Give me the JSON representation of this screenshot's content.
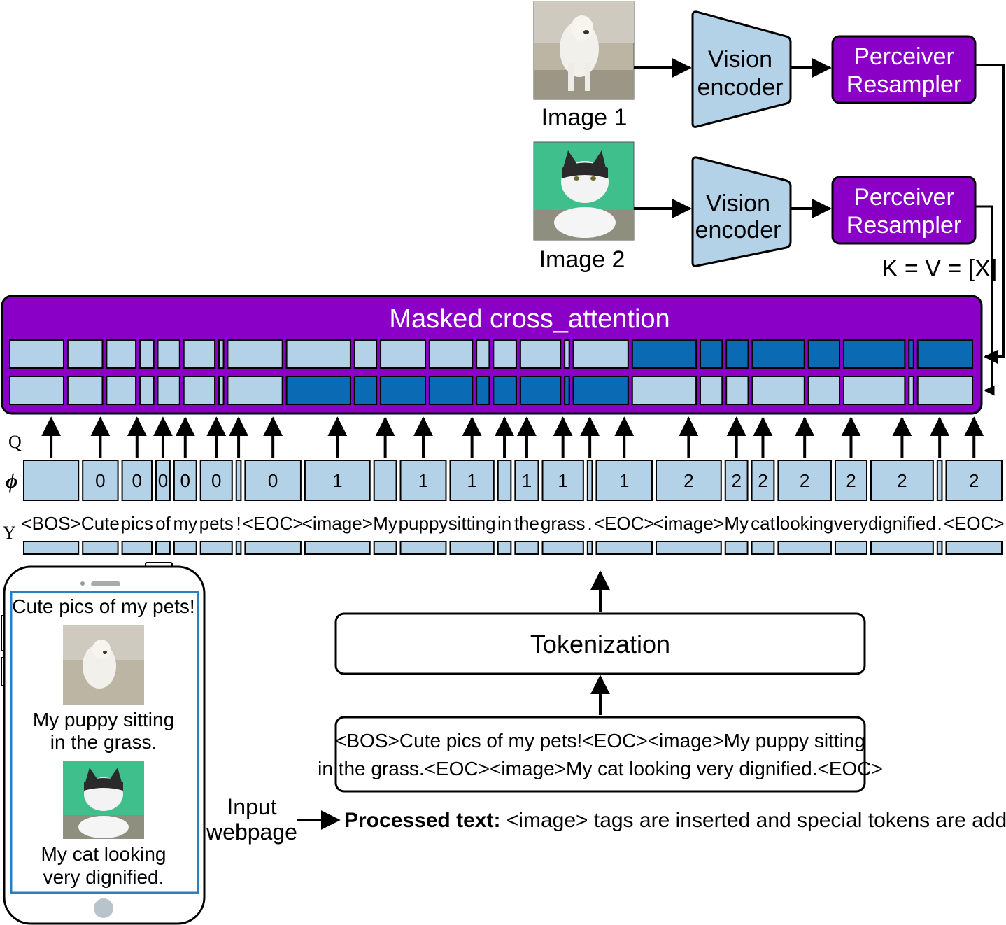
{
  "images": {
    "image1_label": "Image 1",
    "image2_label": "Image 2"
  },
  "encoder": {
    "encoder1_label": [
      "Vision",
      "encoder"
    ],
    "encoder2_label": [
      "Vision",
      "encoder"
    ]
  },
  "resampler": {
    "resampler1_label": [
      "Perceiver",
      "Resampler"
    ],
    "resampler2_label": [
      "Perceiver",
      "Resampler"
    ]
  },
  "kv_label": "K = V = [X]",
  "attention": {
    "title": "Masked cross_attention",
    "row1_dark_image": 2,
    "row2_dark_image": 1
  },
  "axis_labels": {
    "q": "Q",
    "phi": "ϕ",
    "y": "Y"
  },
  "tokens": [
    {
      "text": "<BOS>",
      "phi": "",
      "img": 0
    },
    {
      "text": "Cute",
      "phi": "0",
      "img": 0
    },
    {
      "text": "pics",
      "phi": "0",
      "img": 0
    },
    {
      "text": "of",
      "phi": "0",
      "img": 0
    },
    {
      "text": "my",
      "phi": "0",
      "img": 0
    },
    {
      "text": "pets",
      "phi": "0",
      "img": 0
    },
    {
      "text": "!",
      "phi": "",
      "img": 0
    },
    {
      "text": "<EOC>",
      "phi": "0",
      "img": 0
    },
    {
      "text": "<image>",
      "phi": "1",
      "img": 1
    },
    {
      "text": "My",
      "phi": "",
      "img": 1
    },
    {
      "text": "puppy",
      "phi": "1",
      "img": 1
    },
    {
      "text": "sitting",
      "phi": "1",
      "img": 1
    },
    {
      "text": "in",
      "phi": "",
      "img": 1
    },
    {
      "text": "the",
      "phi": "1",
      "img": 1
    },
    {
      "text": "grass",
      "phi": "1",
      "img": 1
    },
    {
      "text": ".",
      "phi": "",
      "img": 1
    },
    {
      "text": "<EOC>",
      "phi": "1",
      "img": 1
    },
    {
      "text": "<image>",
      "phi": "2",
      "img": 2
    },
    {
      "text": "My",
      "phi": "2",
      "img": 2
    },
    {
      "text": "cat",
      "phi": "2",
      "img": 2
    },
    {
      "text": "looking",
      "phi": "2",
      "img": 2
    },
    {
      "text": "very",
      "phi": "2",
      "img": 2
    },
    {
      "text": "dignified",
      "phi": "2",
      "img": 2
    },
    {
      "text": ".",
      "phi": "",
      "img": 2
    },
    {
      "text": "<EOC>",
      "phi": "2",
      "img": 2
    }
  ],
  "tokenization_label": "Tokenization",
  "processed_box_lines": [
    "<BOS>Cute pics of my pets!<EOC><image>My puppy sitting",
    "in the grass.<EOC><image>My cat looking very dignified.<EOC>"
  ],
  "processed_caption": {
    "bold": "Processed text:",
    "rest": " <image> tags are inserted and special tokens are added"
  },
  "input_label": [
    "Input",
    "webpage"
  ],
  "phone": {
    "title": "Cute pics of my pets!",
    "caption1": [
      "My puppy sitting",
      "in the grass."
    ],
    "caption2": [
      "My cat looking",
      "very dignified."
    ]
  },
  "colors": {
    "purple": "#8a00c6",
    "light_blue": "#b4d2e7",
    "dark_blue": "#0a6ab4",
    "phone_border": "#2a7fc4"
  }
}
